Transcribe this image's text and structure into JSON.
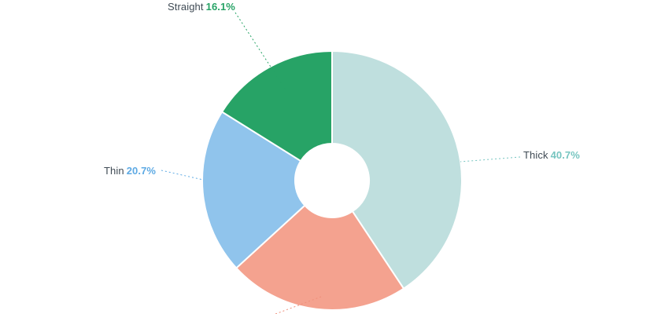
{
  "chart_data": {
    "type": "pie",
    "subtype": "donut",
    "unit": "%",
    "title": "",
    "legend_position": "none",
    "label_style": "outside-callouts-dotted-leaders",
    "start_angle_deg": 0,
    "direction": "clockwise",
    "segments": [
      {
        "label": "Thick",
        "pct": "40.7%",
        "value": 40.7,
        "color": "#bfdfde",
        "accent": "#76c5c0"
      },
      {
        "label": "",
        "pct": "",
        "value": 22.5,
        "color": "#f4a28f",
        "accent": "#ef8f7a"
      },
      {
        "label": "Thin",
        "pct": "20.7%",
        "value": 20.7,
        "color": "#90c4ec",
        "accent": "#5eaae4"
      },
      {
        "label": "Straight",
        "pct": "16.1%",
        "value": 16.1,
        "color": "#27a366",
        "accent": "#27a366"
      }
    ],
    "label_text_color": "#3f4a54"
  }
}
